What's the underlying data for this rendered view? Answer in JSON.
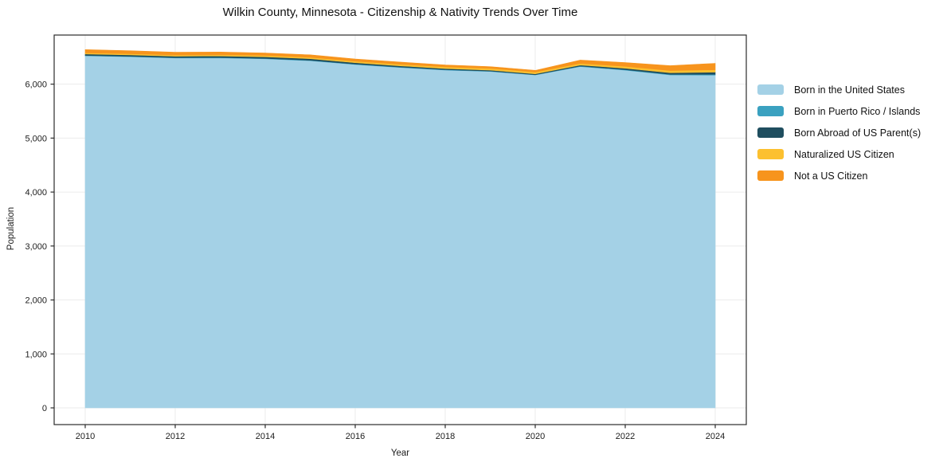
{
  "title": "Wilkin County, Minnesota - Citizenship & Nativity Trends Over Time",
  "chart_data": {
    "type": "area",
    "stacked": true,
    "title": "Wilkin County, Minnesota - Citizenship & Nativity Trends Over Time",
    "xlabel": "Year",
    "ylabel": "Population",
    "x": [
      2010,
      2011,
      2012,
      2013,
      2014,
      2015,
      2016,
      2017,
      2018,
      2019,
      2020,
      2021,
      2022,
      2023,
      2024
    ],
    "xticks": [
      2010,
      2012,
      2014,
      2016,
      2018,
      2020,
      2022,
      2024
    ],
    "yticks": [
      0,
      1000,
      2000,
      3000,
      4000,
      5000,
      6000
    ],
    "xlim": [
      2009.31,
      2024.69
    ],
    "ylim": [
      -310,
      6910
    ],
    "grid": true,
    "legend_position": "right",
    "background_color": "#ffffff",
    "gridline_color": "#ebebeb",
    "frame_color": "#2b2b2b",
    "tick_label_color": "#1c1c1c",
    "series": [
      {
        "name": "Born in the United States",
        "color": "#a4d1e6",
        "values": [
          6525,
          6508,
          6484,
          6486,
          6469,
          6434,
          6364,
          6309,
          6261,
          6236,
          6170,
          6326,
          6259,
          6170,
          6167
        ]
      },
      {
        "name": "Born in Puerto Rico / Islands",
        "color": "#3aa1c0",
        "values": [
          8,
          8,
          8,
          8,
          8,
          8,
          8,
          8,
          8,
          6,
          5,
          8,
          10,
          12,
          15
        ]
      },
      {
        "name": "Born Abroad of US Parent(s)",
        "color": "#1f4e5f",
        "values": [
          26,
          26,
          26,
          28,
          30,
          30,
          25,
          22,
          20,
          18,
          15,
          20,
          26,
          30,
          40
        ]
      },
      {
        "name": "Naturalized US Citizen",
        "color": "#fcc02f",
        "values": [
          21,
          21,
          22,
          23,
          25,
          26,
          28,
          30,
          31,
          33,
          35,
          30,
          35,
          40,
          44
        ]
      },
      {
        "name": "Not a US Citizen",
        "color": "#f7941d",
        "values": [
          60,
          56,
          51,
          50,
          46,
          45,
          41,
          40,
          36,
          32,
          30,
          62,
          70,
          90,
          119
        ]
      }
    ]
  }
}
